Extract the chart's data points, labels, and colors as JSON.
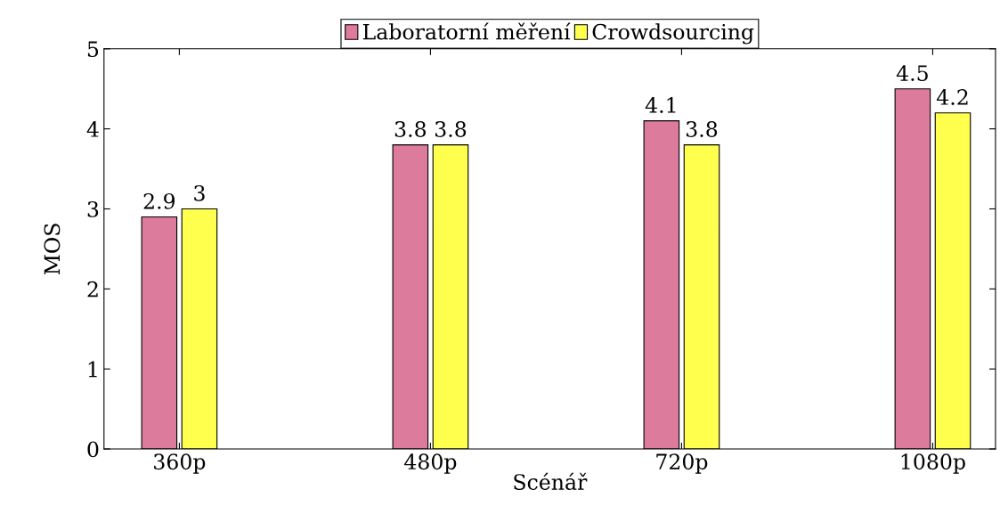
{
  "chart_data": {
    "type": "bar",
    "xlabel": "Scénář",
    "ylabel": "MOS",
    "categories": [
      "360p",
      "480p",
      "720p",
      "1080p"
    ],
    "series": [
      {
        "name": "Laboratorní měření",
        "color": "#dd7b9c",
        "values": [
          2.9,
          3.8,
          4.1,
          4.5
        ]
      },
      {
        "name": "Crowdsourcing",
        "color": "#ffff4d",
        "values": [
          3,
          3.8,
          3.8,
          4.2
        ]
      }
    ],
    "ylim": [
      0,
      5
    ],
    "yticks": [
      0,
      1,
      2,
      3,
      4,
      5
    ],
    "data_labels": true,
    "legend": "top",
    "grid": false
  }
}
